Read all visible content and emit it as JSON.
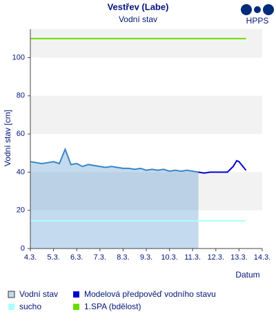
{
  "logo_text": "HPPS",
  "chart_data": {
    "type": "line",
    "title": "Vestřev (Labe)",
    "subtitle": "Vodní stav",
    "y_label": "Vodní stav [cm]",
    "x_label": "Datum",
    "ylim": [
      0,
      115
    ],
    "yticks": [
      0,
      20,
      40,
      60,
      80,
      100
    ],
    "xlim": [
      4,
      14
    ],
    "xticks": [
      {
        "value": 4,
        "label": "4.3."
      },
      {
        "value": 5,
        "label": "5.3."
      },
      {
        "value": 6,
        "label": "6.3."
      },
      {
        "value": 7,
        "label": "7.3."
      },
      {
        "value": 8,
        "label": "8.3."
      },
      {
        "value": 9,
        "label": "9.3."
      },
      {
        "value": 10,
        "label": "10.3."
      },
      {
        "value": 11,
        "label": "11.3."
      },
      {
        "value": 12,
        "label": "12.3."
      },
      {
        "value": 13,
        "label": "13.3."
      },
      {
        "value": 14,
        "label": "14.3."
      }
    ],
    "series": [
      {
        "name": "Vodní stav",
        "color": "#3a85c6",
        "fill": true,
        "x": [
          4,
          4.25,
          4.5,
          4.75,
          5,
          5.25,
          5.5,
          5.75,
          6,
          6.25,
          6.5,
          6.75,
          7,
          7.25,
          7.5,
          7.75,
          8,
          8.25,
          8.5,
          8.75,
          9,
          9.25,
          9.5,
          9.75,
          10,
          10.25,
          10.5,
          10.75,
          11,
          11.25
        ],
        "values": [
          45.5,
          45,
          44.5,
          45,
          45.5,
          44.5,
          52,
          44,
          44.5,
          43,
          44,
          43.5,
          43,
          42.5,
          43,
          42.5,
          42,
          42,
          41.5,
          42,
          41,
          41.5,
          41,
          41.5,
          40.5,
          41,
          40.5,
          41,
          40.5,
          40
        ]
      },
      {
        "name": "Modelová předpověď vodního stavu",
        "color": "#0000cc",
        "x": [
          11.25,
          11.5,
          11.75,
          12,
          12.25,
          12.5,
          12.75,
          12.9,
          13,
          13.1,
          13.2,
          13.3
        ],
        "values": [
          40,
          39.5,
          40,
          40,
          40,
          40,
          43,
          46,
          45.5,
          44,
          42.5,
          41
        ]
      },
      {
        "name": "sucho",
        "color": "#aaffff",
        "x": [
          4,
          13.3
        ],
        "values": [
          14.5,
          14.5
        ]
      },
      {
        "name": "1.SPA (bdělost)",
        "color": "#66dd00",
        "x": [
          4,
          13.3
        ],
        "values": [
          110,
          110
        ]
      }
    ]
  }
}
